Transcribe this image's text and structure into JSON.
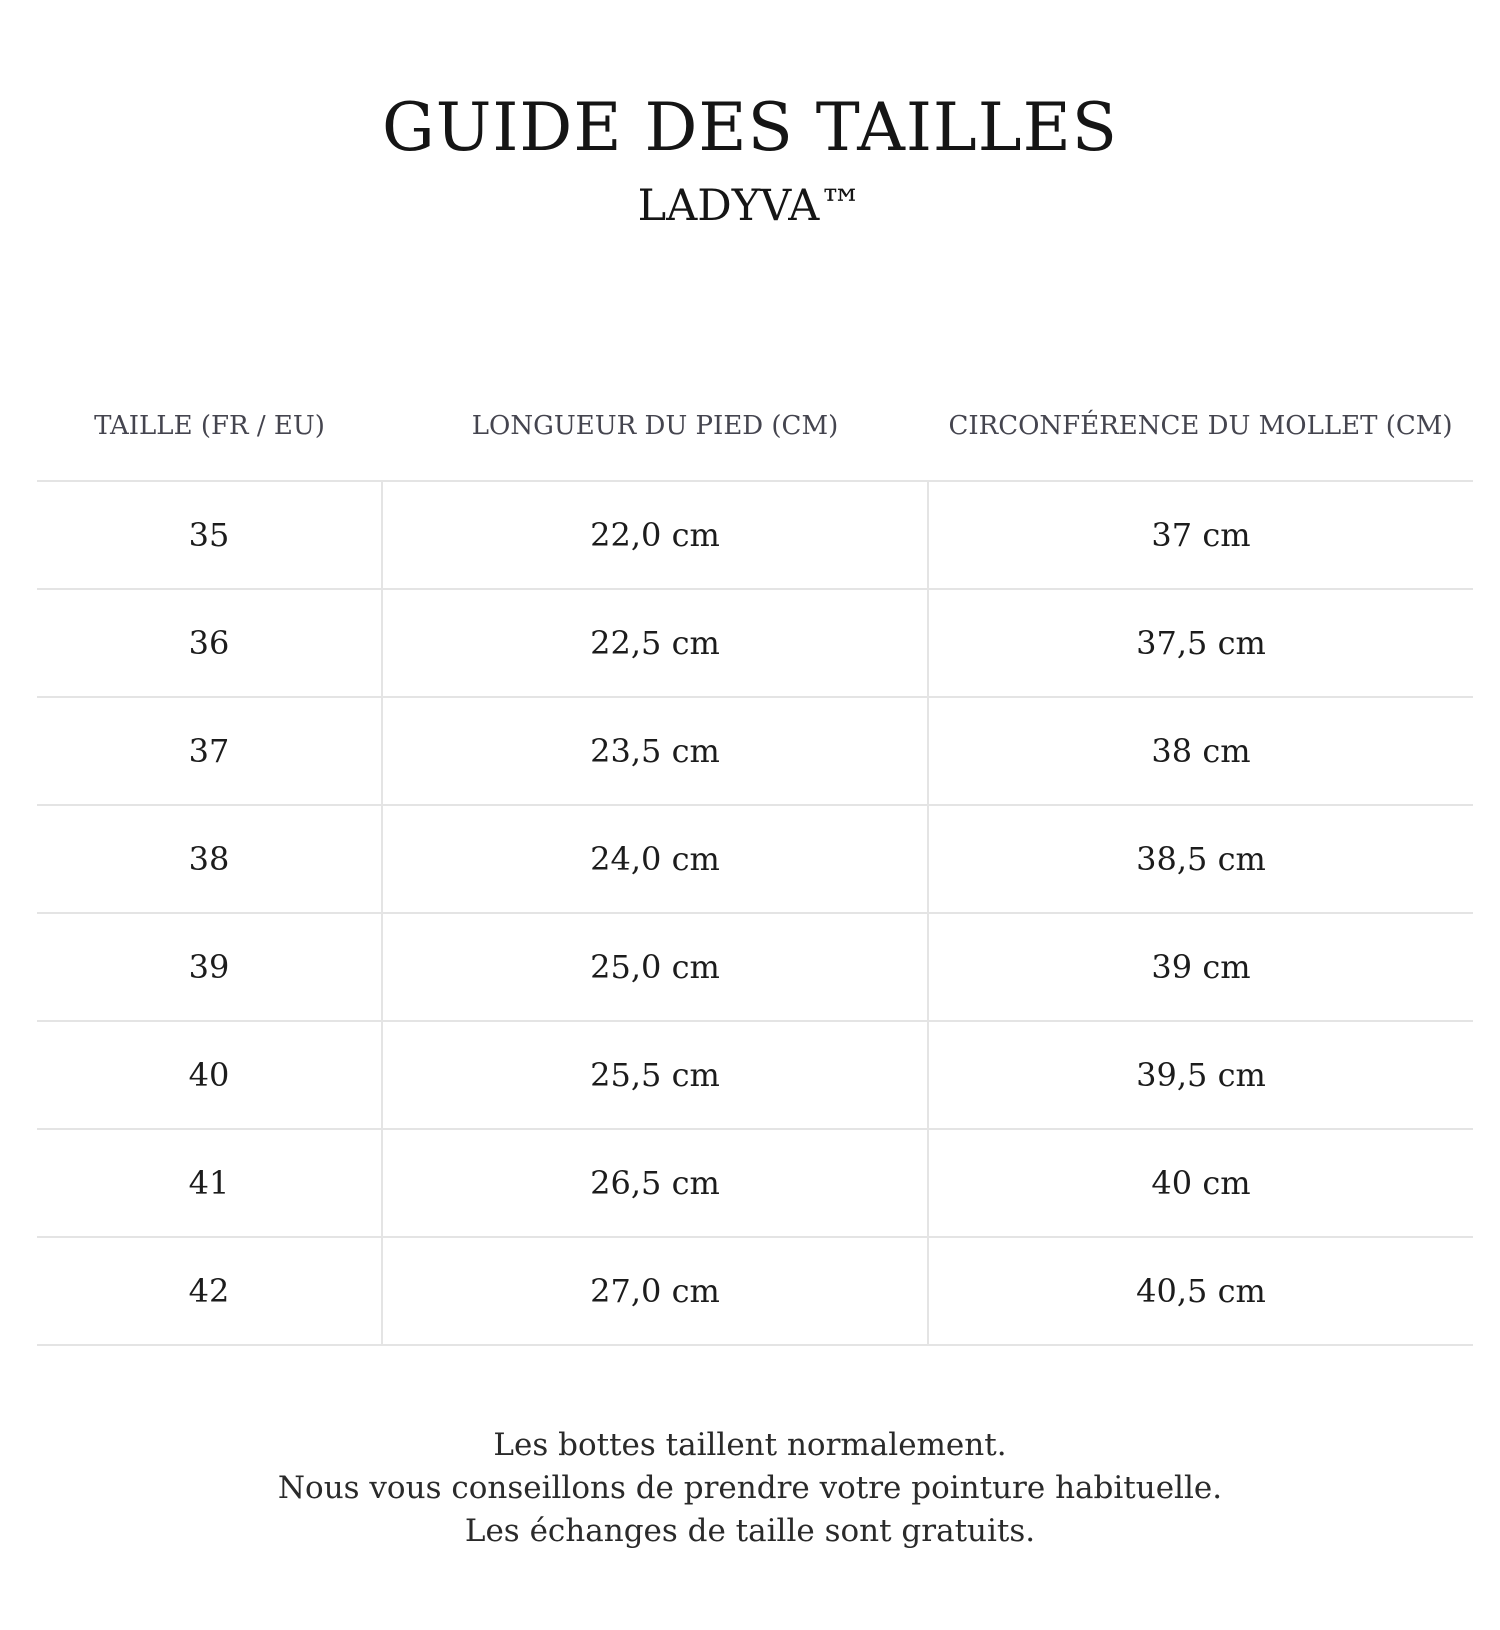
{
  "header": {
    "title": "GUIDE DES TAILLES",
    "subtitle": "LADYVA™"
  },
  "table": {
    "columns": [
      "TAILLE (FR / EU)",
      "LONGUEUR DU PIED (CM)",
      "CIRCONFÉRENCE DU MOLLET (CM)"
    ],
    "rows": [
      [
        "35",
        "22,0 cm",
        "37 cm"
      ],
      [
        "36",
        "22,5 cm",
        "37,5 cm"
      ],
      [
        "37",
        "23,5 cm",
        "38 cm"
      ],
      [
        "38",
        "24,0 cm",
        "38,5 cm"
      ],
      [
        "39",
        "25,0 cm",
        "39 cm"
      ],
      [
        "40",
        "25,5 cm",
        "39,5 cm"
      ],
      [
        "41",
        "26,5 cm",
        "40 cm"
      ],
      [
        "42",
        "27,0 cm",
        "40,5 cm"
      ]
    ]
  },
  "footer": {
    "lines": [
      "Les bottes taillent normalement.",
      "Nous vous conseillons de prendre votre pointure habituelle.",
      "Les échanges de taille sont gratuits."
    ]
  }
}
